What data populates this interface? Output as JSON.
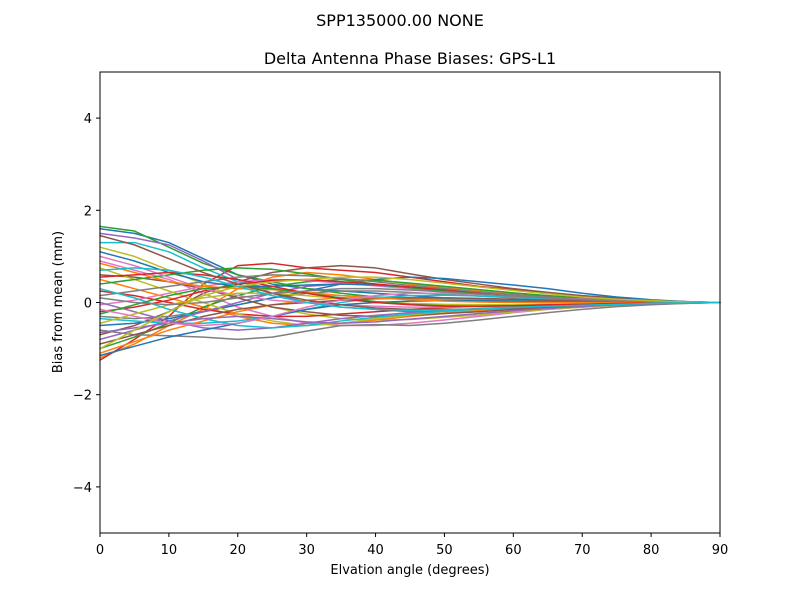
{
  "chart_data": {
    "type": "line",
    "suptitle": "SPP135000.00    NONE",
    "title": "Delta Antenna Phase Biases: GPS-L1",
    "xlabel": "Elvation angle (degrees)",
    "ylabel": "Bias from mean (mm)",
    "xlim": [
      0,
      90
    ],
    "ylim": [
      -5,
      5
    ],
    "xticks": [
      "0",
      "10",
      "20",
      "30",
      "40",
      "50",
      "60",
      "70",
      "80",
      "90"
    ],
    "yticks": [
      "4",
      "2",
      "0",
      "−2",
      "−4"
    ],
    "xtick_values": [
      0,
      10,
      20,
      30,
      40,
      50,
      60,
      70,
      80,
      90
    ],
    "ytick_values": [
      4,
      2,
      0,
      -2,
      -4
    ],
    "grid": false,
    "legend": "none",
    "x": [
      0,
      5,
      10,
      15,
      20,
      25,
      30,
      35,
      40,
      45,
      50,
      55,
      60,
      65,
      70,
      75,
      80,
      85,
      90
    ],
    "colors": [
      "#1f77b4",
      "#ff7f0e",
      "#2ca02c",
      "#d62728",
      "#9467bd",
      "#8c564b",
      "#e377c2",
      "#7f7f7f",
      "#bcbd22",
      "#17becf"
    ],
    "series": [
      {
        "values": [
          1.6,
          1.5,
          1.3,
          0.95,
          0.6,
          0.4,
          0.3,
          0.25,
          0.2,
          0.15,
          0.1,
          0.08,
          0.06,
          0.04,
          0.02,
          0.0,
          -0.02,
          -0.02,
          0.0
        ]
      },
      {
        "values": [
          -1.2,
          -0.9,
          -0.5,
          -0.15,
          0.3,
          0.55,
          0.65,
          0.6,
          0.5,
          0.4,
          0.32,
          0.25,
          0.18,
          0.12,
          0.07,
          0.04,
          0.02,
          0.01,
          0.0
        ]
      },
      {
        "values": [
          1.65,
          1.55,
          1.2,
          0.85,
          0.6,
          0.45,
          0.3,
          0.2,
          0.12,
          0.08,
          0.05,
          0.03,
          0.02,
          0.01,
          0.0,
          0.0,
          0.0,
          0.0,
          0.0
        ]
      },
      {
        "values": [
          -1.25,
          -0.8,
          -0.3,
          0.4,
          0.8,
          0.85,
          0.75,
          0.7,
          0.65,
          0.55,
          0.45,
          0.35,
          0.28,
          0.2,
          0.13,
          0.08,
          0.04,
          0.02,
          0.0
        ]
      },
      {
        "values": [
          1.5,
          1.4,
          1.25,
          0.9,
          0.5,
          0.2,
          0.0,
          -0.1,
          -0.15,
          -0.2,
          -0.2,
          -0.18,
          -0.15,
          -0.12,
          -0.08,
          -0.05,
          -0.03,
          -0.01,
          0.0
        ]
      },
      {
        "values": [
          -0.7,
          -0.5,
          -0.2,
          0.2,
          0.45,
          0.65,
          0.75,
          0.8,
          0.75,
          0.62,
          0.5,
          0.4,
          0.3,
          0.22,
          0.15,
          0.1,
          0.05,
          0.02,
          0.0
        ]
      },
      {
        "values": [
          0.9,
          0.7,
          0.5,
          0.2,
          -0.1,
          -0.3,
          -0.45,
          -0.5,
          -0.5,
          -0.45,
          -0.38,
          -0.3,
          -0.22,
          -0.15,
          -0.1,
          -0.06,
          -0.03,
          -0.01,
          0.0
        ]
      },
      {
        "values": [
          -0.3,
          -0.35,
          -0.3,
          -0.2,
          -0.05,
          0.1,
          0.2,
          0.25,
          0.25,
          0.22,
          0.18,
          0.14,
          0.1,
          0.07,
          0.05,
          0.03,
          0.01,
          0.0,
          0.0
        ]
      },
      {
        "values": [
          1.2,
          1.0,
          0.7,
          0.4,
          0.1,
          -0.1,
          -0.25,
          -0.35,
          -0.38,
          -0.37,
          -0.32,
          -0.27,
          -0.2,
          -0.15,
          -0.1,
          -0.06,
          -0.03,
          -0.01,
          0.0
        ]
      },
      {
        "values": [
          1.3,
          1.3,
          1.1,
          0.75,
          0.45,
          0.3,
          0.2,
          0.15,
          0.12,
          0.1,
          0.08,
          0.06,
          0.05,
          0.03,
          0.02,
          0.01,
          0.0,
          0.0,
          0.0
        ]
      },
      {
        "values": [
          -0.5,
          -0.45,
          -0.35,
          -0.2,
          -0.05,
          0.1,
          0.25,
          0.4,
          0.5,
          0.55,
          0.52,
          0.45,
          0.38,
          0.3,
          0.2,
          0.12,
          0.06,
          0.02,
          0.0
        ]
      },
      {
        "values": [
          0.5,
          0.3,
          0.1,
          -0.1,
          -0.3,
          -0.45,
          -0.5,
          -0.45,
          -0.38,
          -0.3,
          -0.24,
          -0.18,
          -0.13,
          -0.09,
          -0.06,
          -0.04,
          -0.02,
          -0.01,
          0.0
        ]
      },
      {
        "values": [
          -1.0,
          -0.75,
          -0.45,
          -0.1,
          0.15,
          0.35,
          0.45,
          0.5,
          0.48,
          0.42,
          0.35,
          0.28,
          0.21,
          0.15,
          0.1,
          0.06,
          0.03,
          0.01,
          0.0
        ]
      },
      {
        "values": [
          0.25,
          0.15,
          0.0,
          -0.15,
          -0.25,
          -0.3,
          -0.3,
          -0.25,
          -0.2,
          -0.15,
          -0.11,
          -0.08,
          -0.06,
          -0.04,
          -0.03,
          -0.02,
          -0.01,
          0.0,
          0.0
        ]
      },
      {
        "values": [
          -0.8,
          -0.6,
          -0.4,
          -0.2,
          0.0,
          0.2,
          0.35,
          0.4,
          0.38,
          0.33,
          0.27,
          0.21,
          0.16,
          0.11,
          0.07,
          0.04,
          0.02,
          0.01,
          0.0
        ]
      },
      {
        "values": [
          0.6,
          0.55,
          0.45,
          0.3,
          0.1,
          -0.1,
          -0.2,
          -0.28,
          -0.3,
          -0.28,
          -0.24,
          -0.2,
          -0.15,
          -0.1,
          -0.07,
          -0.04,
          -0.02,
          -0.01,
          0.0
        ]
      },
      {
        "values": [
          -0.05,
          0.05,
          0.2,
          0.35,
          0.45,
          0.5,
          0.48,
          0.42,
          0.36,
          0.3,
          0.24,
          0.19,
          0.14,
          0.1,
          0.07,
          0.04,
          0.02,
          0.01,
          0.0
        ]
      },
      {
        "values": [
          -0.6,
          -0.7,
          -0.72,
          -0.75,
          -0.8,
          -0.75,
          -0.62,
          -0.5,
          -0.48,
          -0.5,
          -0.45,
          -0.38,
          -0.3,
          -0.22,
          -0.15,
          -0.09,
          -0.05,
          -0.02,
          0.0
        ]
      },
      {
        "values": [
          0.75,
          0.5,
          0.25,
          0.0,
          -0.25,
          -0.4,
          -0.5,
          -0.45,
          -0.35,
          -0.27,
          -0.2,
          -0.15,
          -0.11,
          -0.08,
          -0.05,
          -0.03,
          -0.02,
          -0.01,
          0.0
        ]
      },
      {
        "values": [
          -0.35,
          -0.4,
          -0.45,
          -0.45,
          -0.4,
          -0.3,
          -0.15,
          0.0,
          0.1,
          0.15,
          0.16,
          0.14,
          0.11,
          0.08,
          0.05,
          0.03,
          0.02,
          0.01,
          0.0
        ]
      },
      {
        "values": [
          1.1,
          0.9,
          0.65,
          0.45,
          0.35,
          0.35,
          0.38,
          0.4,
          0.38,
          0.33,
          0.27,
          0.21,
          0.16,
          0.11,
          0.07,
          0.04,
          0.02,
          0.01,
          0.0
        ]
      },
      {
        "values": [
          -1.1,
          -0.85,
          -0.6,
          -0.4,
          -0.2,
          -0.05,
          0.05,
          0.1,
          0.1,
          0.08,
          0.06,
          0.04,
          0.03,
          0.02,
          0.01,
          0.0,
          0.0,
          0.0,
          0.0
        ]
      },
      {
        "values": [
          0.4,
          0.5,
          0.6,
          0.7,
          0.75,
          0.72,
          0.62,
          0.5,
          0.4,
          0.32,
          0.25,
          0.19,
          0.14,
          0.1,
          0.06,
          0.04,
          0.02,
          0.01,
          0.0
        ]
      },
      {
        "values": [
          -0.2,
          -0.1,
          0.05,
          0.25,
          0.4,
          0.48,
          0.5,
          0.45,
          0.4,
          0.34,
          0.28,
          0.22,
          0.17,
          0.12,
          0.08,
          0.05,
          0.02,
          0.01,
          0.0
        ]
      },
      {
        "values": [
          0.0,
          -0.2,
          -0.4,
          -0.55,
          -0.6,
          -0.55,
          -0.45,
          -0.35,
          -0.28,
          -0.22,
          -0.17,
          -0.13,
          -0.1,
          -0.07,
          -0.05,
          -0.03,
          -0.02,
          -0.01,
          0.0
        ]
      },
      {
        "values": [
          -0.9,
          -0.7,
          -0.5,
          -0.3,
          -0.15,
          -0.05,
          0.0,
          0.05,
          0.08,
          0.1,
          0.1,
          0.09,
          0.07,
          0.05,
          0.03,
          0.02,
          0.01,
          0.0,
          0.0
        ]
      },
      {
        "values": [
          1.0,
          0.8,
          0.55,
          0.3,
          0.15,
          0.05,
          0.0,
          -0.05,
          -0.08,
          -0.1,
          -0.1,
          -0.09,
          -0.07,
          -0.05,
          -0.03,
          -0.02,
          -0.01,
          0.0,
          0.0
        ]
      },
      {
        "values": [
          0.15,
          0.25,
          0.35,
          0.45,
          0.55,
          0.6,
          0.58,
          0.52,
          0.45,
          0.37,
          0.3,
          0.23,
          0.17,
          0.12,
          0.08,
          0.05,
          0.02,
          0.01,
          0.0
        ]
      },
      {
        "values": [
          -0.45,
          -0.25,
          -0.05,
          0.1,
          0.2,
          0.2,
          0.15,
          0.08,
          0.02,
          -0.02,
          -0.04,
          -0.05,
          -0.05,
          -0.04,
          -0.03,
          -0.02,
          -0.01,
          0.0,
          0.0
        ]
      },
      {
        "values": [
          0.3,
          0.1,
          -0.15,
          -0.35,
          -0.5,
          -0.55,
          -0.5,
          -0.4,
          -0.32,
          -0.25,
          -0.19,
          -0.14,
          -0.1,
          -0.07,
          -0.05,
          -0.03,
          -0.02,
          -0.01,
          0.0
        ]
      },
      {
        "values": [
          -1.15,
          -0.95,
          -0.75,
          -0.6,
          -0.45,
          -0.3,
          -0.15,
          -0.05,
          0.0,
          0.03,
          0.04,
          0.04,
          0.03,
          0.02,
          0.01,
          0.01,
          0.0,
          0.0,
          0.0
        ]
      },
      {
        "values": [
          0.85,
          0.65,
          0.45,
          0.35,
          0.3,
          0.28,
          0.22,
          0.15,
          0.1,
          0.06,
          0.03,
          0.01,
          0.0,
          0.0,
          0.0,
          0.0,
          0.0,
          0.0,
          0.0
        ]
      },
      {
        "values": [
          -0.25,
          -0.05,
          0.15,
          0.3,
          0.35,
          0.3,
          0.2,
          0.1,
          0.02,
          -0.04,
          -0.07,
          -0.08,
          -0.07,
          -0.06,
          -0.04,
          -0.03,
          -0.01,
          0.0,
          0.0
        ]
      },
      {
        "values": [
          0.55,
          0.6,
          0.65,
          0.6,
          0.5,
          0.35,
          0.2,
          0.08,
          0.0,
          -0.05,
          -0.08,
          -0.08,
          -0.07,
          -0.05,
          -0.04,
          -0.02,
          -0.01,
          0.0,
          0.0
        ]
      },
      {
        "values": [
          -0.65,
          -0.55,
          -0.45,
          -0.35,
          -0.3,
          -0.35,
          -0.42,
          -0.45,
          -0.42,
          -0.36,
          -0.3,
          -0.24,
          -0.18,
          -0.13,
          -0.09,
          -0.05,
          -0.03,
          -0.01,
          0.0
        ]
      },
      {
        "values": [
          1.45,
          1.25,
          0.95,
          0.65,
          0.4,
          0.2,
          0.05,
          -0.05,
          -0.12,
          -0.15,
          -0.15,
          -0.14,
          -0.12,
          -0.09,
          -0.06,
          -0.04,
          -0.02,
          -0.01,
          0.0
        ]
      },
      {
        "values": [
          -0.15,
          -0.3,
          -0.45,
          -0.5,
          -0.45,
          -0.3,
          -0.1,
          0.05,
          0.15,
          0.2,
          0.2,
          0.18,
          0.14,
          0.1,
          0.07,
          0.04,
          0.02,
          0.01,
          0.0
        ]
      },
      {
        "values": [
          0.1,
          0.0,
          -0.05,
          0.0,
          0.1,
          0.2,
          0.25,
          0.3,
          0.3,
          0.27,
          0.23,
          0.18,
          0.14,
          0.1,
          0.06,
          0.04,
          0.02,
          0.01,
          0.0
        ]
      },
      {
        "values": [
          -1.0,
          -0.6,
          -0.2,
          0.15,
          0.35,
          0.45,
          0.5,
          0.55,
          0.55,
          0.5,
          0.42,
          0.34,
          0.26,
          0.19,
          0.12,
          0.07,
          0.04,
          0.01,
          0.0
        ]
      },
      {
        "values": [
          0.7,
          0.75,
          0.7,
          0.55,
          0.35,
          0.15,
          0.0,
          -0.1,
          -0.15,
          -0.17,
          -0.16,
          -0.14,
          -0.11,
          -0.08,
          -0.06,
          -0.04,
          -0.02,
          -0.01,
          0.0
        ]
      }
    ]
  }
}
